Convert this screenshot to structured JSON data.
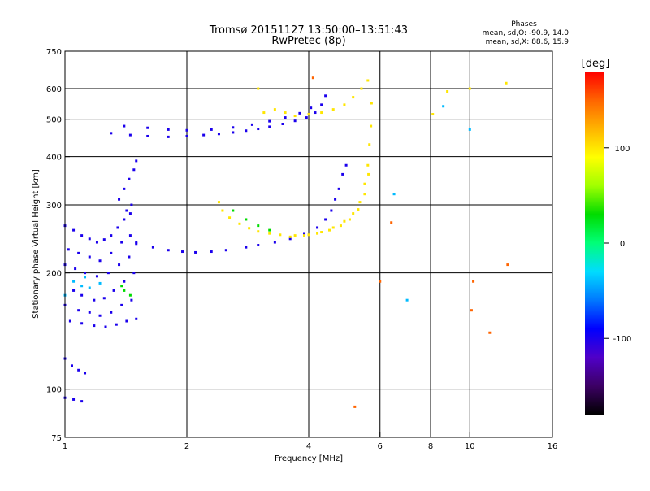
{
  "chart_data": {
    "type": "scatter",
    "title": "Tromsø 20151127 13:50:00–13:51:43",
    "subtitle": "RwPretec (8p)",
    "xlabel": "Frequency [MHz]",
    "ylabel": "Stationary phase Virtual Height [km]",
    "x_scale": "log",
    "y_scale": "log",
    "xlim": [
      1,
      16
    ],
    "ylim": [
      75,
      750
    ],
    "x_ticks": [
      1,
      2,
      4,
      6,
      8,
      10,
      16
    ],
    "x_tick_labels": [
      "1",
      "2",
      "4",
      "6",
      "8",
      "10",
      "16"
    ],
    "y_ticks": [
      75,
      100,
      200,
      300,
      400,
      500,
      600,
      750
    ],
    "y_tick_labels": [
      "75",
      "100",
      "200",
      "300",
      "400",
      "500",
      "600",
      "750"
    ],
    "grid": true,
    "grid_x": [
      2,
      4,
      6,
      8,
      10
    ],
    "grid_y": [
      100,
      200,
      300,
      400,
      500,
      600
    ],
    "phase_legend": {
      "title": "Phases",
      "line_o": "mean, sd,O: -90.9, 14.0",
      "line_x": "mean, sd,X:  88.6, 15.9"
    },
    "colorbar": {
      "label": "[deg]",
      "min": -180,
      "max": 180,
      "ticks": [
        100,
        0,
        -100
      ],
      "tick_labels": [
        "100",
        "0",
        "-100"
      ],
      "colors": [
        "#000000",
        "#3c0064",
        "#5000c8",
        "#0000ff",
        "#0078ff",
        "#00dcff",
        "#00ff78",
        "#00dc00",
        "#a0ff00",
        "#ffff00",
        "#ffb400",
        "#ff6400",
        "#ff0000"
      ]
    },
    "series": [
      {
        "points": [
          [
            1.0,
            265
          ],
          [
            1.05,
            258
          ],
          [
            1.1,
            250
          ],
          [
            1.15,
            245
          ],
          [
            1.2,
            240
          ],
          [
            1.25,
            244
          ],
          [
            1.3,
            250
          ],
          [
            1.35,
            262
          ],
          [
            1.4,
            275
          ],
          [
            1.45,
            285
          ],
          [
            1.02,
            230
          ],
          [
            1.08,
            225
          ],
          [
            1.15,
            220
          ],
          [
            1.22,
            215
          ],
          [
            1.3,
            225
          ],
          [
            1.38,
            240
          ],
          [
            1.45,
            250
          ],
          [
            1.5,
            240
          ],
          [
            1.0,
            210
          ],
          [
            1.06,
            205
          ],
          [
            1.12,
            200
          ],
          [
            1.2,
            196
          ],
          [
            1.28,
            200
          ],
          [
            1.36,
            210
          ],
          [
            1.44,
            220
          ],
          [
            1.05,
            180
          ],
          [
            1.1,
            175
          ],
          [
            1.18,
            170
          ],
          [
            1.25,
            172
          ],
          [
            1.32,
            180
          ],
          [
            1.4,
            190
          ],
          [
            1.48,
            200
          ],
          [
            1.0,
            165
          ],
          [
            1.08,
            160
          ],
          [
            1.15,
            158
          ],
          [
            1.22,
            155
          ],
          [
            1.3,
            158
          ],
          [
            1.38,
            165
          ],
          [
            1.46,
            170
          ],
          [
            1.03,
            150
          ],
          [
            1.1,
            148
          ],
          [
            1.18,
            146
          ],
          [
            1.26,
            145
          ],
          [
            1.34,
            147
          ],
          [
            1.42,
            150
          ],
          [
            1.5,
            152
          ],
          [
            1.36,
            310
          ],
          [
            1.4,
            330
          ],
          [
            1.44,
            350
          ],
          [
            1.48,
            370
          ],
          [
            1.5,
            390
          ],
          [
            1.46,
            300
          ],
          [
            1.42,
            290
          ],
          [
            1.5,
            238
          ],
          [
            1.65,
            233
          ],
          [
            1.8,
            229
          ],
          [
            1.95,
            227
          ],
          [
            2.1,
            226
          ],
          [
            2.3,
            227
          ],
          [
            2.5,
            229
          ],
          [
            2.8,
            233
          ],
          [
            3.0,
            236
          ],
          [
            3.3,
            240
          ],
          [
            3.6,
            245
          ],
          [
            3.9,
            252
          ],
          [
            4.2,
            262
          ],
          [
            4.4,
            275
          ],
          [
            4.55,
            290
          ],
          [
            4.65,
            310
          ],
          [
            4.75,
            330
          ],
          [
            4.85,
            360
          ],
          [
            4.95,
            380
          ],
          [
            1.3,
            460
          ],
          [
            1.45,
            455
          ],
          [
            1.6,
            452
          ],
          [
            1.8,
            450
          ],
          [
            2.0,
            452
          ],
          [
            2.2,
            455
          ],
          [
            2.4,
            458
          ],
          [
            2.6,
            462
          ],
          [
            2.8,
            467
          ],
          [
            3.0,
            472
          ],
          [
            3.2,
            478
          ],
          [
            3.45,
            486
          ],
          [
            3.7,
            495
          ],
          [
            3.95,
            505
          ],
          [
            4.15,
            520
          ],
          [
            4.3,
            545
          ],
          [
            4.4,
            575
          ],
          [
            1.4,
            480
          ],
          [
            1.6,
            475
          ],
          [
            1.8,
            470
          ],
          [
            2.0,
            468
          ],
          [
            2.3,
            470
          ],
          [
            2.6,
            476
          ],
          [
            2.9,
            484
          ],
          [
            3.2,
            494
          ],
          [
            3.5,
            505
          ],
          [
            3.8,
            518
          ],
          [
            4.05,
            535
          ],
          [
            1.0,
            120
          ],
          [
            1.04,
            115
          ],
          [
            1.08,
            112
          ],
          [
            1.12,
            110
          ],
          [
            1.0,
            95
          ],
          [
            1.05,
            94
          ],
          [
            1.1,
            93
          ]
        ],
        "phase": -100
      },
      {
        "points": [
          [
            2.4,
            305
          ],
          [
            2.45,
            290
          ],
          [
            2.55,
            278
          ],
          [
            2.7,
            268
          ],
          [
            2.85,
            261
          ],
          [
            3.0,
            256
          ],
          [
            3.2,
            253
          ],
          [
            3.4,
            251
          ],
          [
            3.7,
            250
          ],
          [
            4.0,
            251
          ],
          [
            4.3,
            255
          ],
          [
            4.6,
            262
          ],
          [
            4.9,
            272
          ],
          [
            5.15,
            285
          ],
          [
            5.35,
            305
          ],
          [
            5.5,
            340
          ],
          [
            5.6,
            380
          ],
          [
            5.65,
            430
          ],
          [
            5.7,
            480
          ],
          [
            5.72,
            550
          ],
          [
            3.6,
            248
          ],
          [
            3.9,
            250
          ],
          [
            4.2,
            253
          ],
          [
            4.5,
            258
          ],
          [
            4.8,
            265
          ],
          [
            5.05,
            275
          ],
          [
            5.3,
            292
          ],
          [
            5.5,
            320
          ],
          [
            5.62,
            360
          ],
          [
            3.1,
            520
          ],
          [
            3.3,
            530
          ],
          [
            3.5,
            520
          ],
          [
            3.7,
            510
          ],
          [
            4.0,
            515
          ],
          [
            4.3,
            520
          ],
          [
            4.6,
            530
          ],
          [
            4.9,
            545
          ],
          [
            5.15,
            570
          ],
          [
            5.4,
            600
          ],
          [
            5.6,
            630
          ],
          [
            12.3,
            620
          ],
          [
            8.1,
            515
          ],
          [
            8.8,
            590
          ],
          [
            10.0,
            600
          ],
          [
            3.0,
            600
          ]
        ],
        "phase": 100
      },
      {
        "points": [
          [
            2.6,
            290
          ],
          [
            2.8,
            275
          ],
          [
            3.0,
            265
          ],
          [
            3.2,
            258
          ],
          [
            1.4,
            180
          ],
          [
            1.45,
            175
          ],
          [
            1.38,
            185
          ]
        ],
        "phase": 30
      },
      {
        "points": [
          [
            1.05,
            190
          ],
          [
            1.1,
            185
          ],
          [
            1.15,
            183
          ],
          [
            1.22,
            188
          ],
          [
            1.0,
            175
          ],
          [
            1.12,
            195
          ],
          [
            8.6,
            540
          ],
          [
            6.5,
            320
          ],
          [
            10.0,
            470
          ],
          [
            7.0,
            170
          ]
        ],
        "phase": -40
      },
      {
        "points": [
          [
            5.2,
            90
          ],
          [
            6.0,
            190
          ],
          [
            10.2,
            190
          ],
          [
            11.2,
            140
          ],
          [
            12.4,
            210
          ],
          [
            10.1,
            160
          ],
          [
            6.4,
            270
          ],
          [
            4.1,
            640
          ]
        ],
        "phase": 150
      }
    ]
  }
}
